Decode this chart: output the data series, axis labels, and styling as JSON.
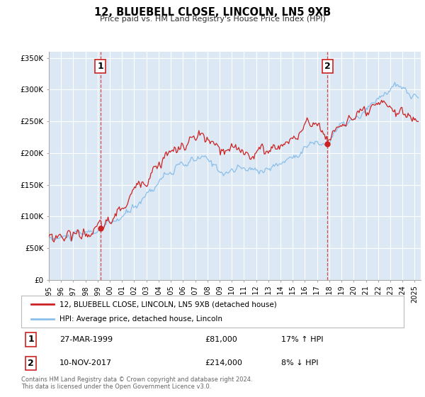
{
  "title": "12, BLUEBELL CLOSE, LINCOLN, LN5 9XB",
  "subtitle": "Price paid vs. HM Land Registry's House Price Index (HPI)",
  "ylim": [
    0,
    360000
  ],
  "xlim_start": 1995.0,
  "xlim_end": 2025.5,
  "plot_bg_color": "#dce9f5",
  "grid_color": "#ffffff",
  "hpi_color": "#8bbfea",
  "price_color": "#cc2222",
  "marker1_date": 1999.23,
  "marker1_price": 81000,
  "marker1_label": "1",
  "marker1_date_str": "27-MAR-1999",
  "marker1_price_str": "£81,000",
  "marker1_hpi_str": "17% ↑ HPI",
  "marker2_date": 2017.86,
  "marker2_price": 214000,
  "marker2_label": "2",
  "marker2_date_str": "10-NOV-2017",
  "marker2_price_str": "£214,000",
  "marker2_hpi_str": "8% ↓ HPI",
  "legend_label_price": "12, BLUEBELL CLOSE, LINCOLN, LN5 9XB (detached house)",
  "legend_label_hpi": "HPI: Average price, detached house, Lincoln",
  "footer_line1": "Contains HM Land Registry data © Crown copyright and database right 2024.",
  "footer_line2": "This data is licensed under the Open Government Licence v3.0.",
  "yticks": [
    0,
    50000,
    100000,
    150000,
    200000,
    250000,
    300000,
    350000
  ],
  "ytick_labels": [
    "£0",
    "£50K",
    "£100K",
    "£150K",
    "£200K",
    "£250K",
    "£300K",
    "£350K"
  ]
}
